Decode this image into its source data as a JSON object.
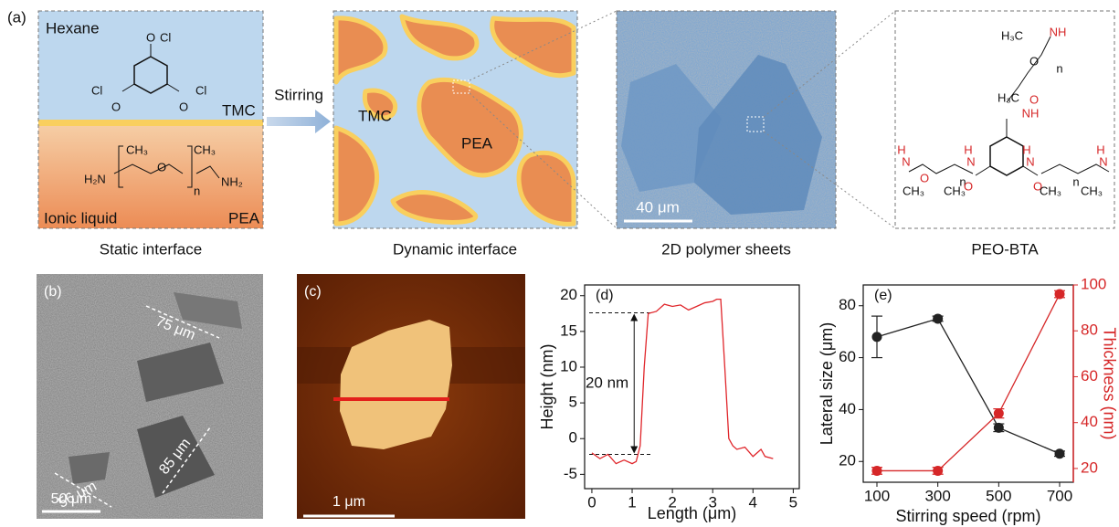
{
  "figure": {
    "panel_labels": [
      "(a)",
      "(b)",
      "(c)",
      "(d)",
      "(e)"
    ],
    "a": {
      "hexane": "Hexane",
      "tmc": "TMC",
      "ionic_liquid": "Ionic liquid",
      "pea": "PEA",
      "tmc_atoms": [
        "O",
        "Cl",
        "Cl",
        "Cl",
        "O",
        "O"
      ],
      "pea_atoms": [
        "CH₃",
        "CH₃",
        "H₂N",
        "O",
        "n",
        "NH₂"
      ],
      "stirring": "Stirring",
      "dyn_tmc": "TMC",
      "dyn_pea": "PEA",
      "scale": "40 μm",
      "bta_atoms": [
        "H₃C",
        "NH",
        "O",
        "n",
        "H₃C",
        "O",
        "NH",
        "H",
        "N",
        "O",
        "n",
        "CH₃",
        "CH₃",
        "H",
        "N",
        "O",
        "H",
        "N",
        "O",
        "n",
        "CH₃",
        "CH₃",
        "H",
        "N"
      ],
      "captions": [
        "Static interface",
        "Dynamic interface",
        "2D polymer sheets",
        "PEO-BTA"
      ]
    },
    "b": {
      "scale": "50 μm",
      "lengths": [
        "75 μm",
        "56 μm",
        "85 μm"
      ]
    },
    "c": {
      "scale": "1 μm"
    }
  },
  "chart_data": [
    {
      "type": "line",
      "xlabel": "Length (μm)",
      "ylabel": "Height (nm)",
      "x": [
        0,
        0.2,
        0.4,
        0.6,
        0.8,
        1.0,
        1.1,
        1.2,
        1.3,
        1.4,
        1.6,
        1.8,
        2.0,
        2.2,
        2.4,
        2.6,
        2.8,
        3.0,
        3.1,
        3.2,
        3.3,
        3.4,
        3.5,
        3.6,
        3.8,
        4.0,
        4.2,
        4.3,
        4.5
      ],
      "values": [
        -2,
        -2.8,
        -2.2,
        -3.5,
        -3,
        -3.5,
        -3.2,
        -1,
        10,
        17.5,
        17.8,
        18.8,
        18.5,
        18.7,
        18,
        18.5,
        19,
        19.2,
        19.5,
        19.5,
        10,
        0,
        -1,
        -1.5,
        -1.2,
        -2.5,
        -1.5,
        -2.5,
        -2.8
      ],
      "color": "#e0262b",
      "xlim": [
        -0.18,
        5.15
      ],
      "xticks": [
        0,
        1,
        2,
        3,
        4,
        5
      ],
      "ylim": [
        -7,
        21.5
      ],
      "yticks": [
        -5,
        0,
        5,
        10,
        15,
        20
      ],
      "dashed_levels": [
        17.6,
        -2.2
      ],
      "annotation": "20 nm"
    },
    {
      "type": "dual",
      "xlabel": "Stirring speed (rpm)",
      "ylabel": "Lateral size (μm)",
      "y2label": "Thickness (nm)",
      "x": [
        100,
        300,
        500,
        700
      ],
      "series": [
        {
          "color": "#222222",
          "values": [
            68,
            75,
            33,
            23
          ],
          "errors": [
            8,
            1,
            1.5,
            1
          ]
        },
        {
          "color": "#d62728",
          "values": [
            19,
            19,
            44,
            96
          ],
          "errors": [
            1.5,
            1.5,
            2,
            1.5
          ],
          "axis": "y2"
        }
      ],
      "xlim": [
        55,
        745
      ],
      "xticks": [
        100,
        300,
        500,
        700
      ],
      "ylim": [
        12,
        88
      ],
      "yticks": [
        20,
        40,
        60,
        80
      ],
      "y2lim": [
        14,
        100
      ],
      "y2ticks": [
        20,
        40,
        60,
        80,
        100
      ]
    }
  ]
}
